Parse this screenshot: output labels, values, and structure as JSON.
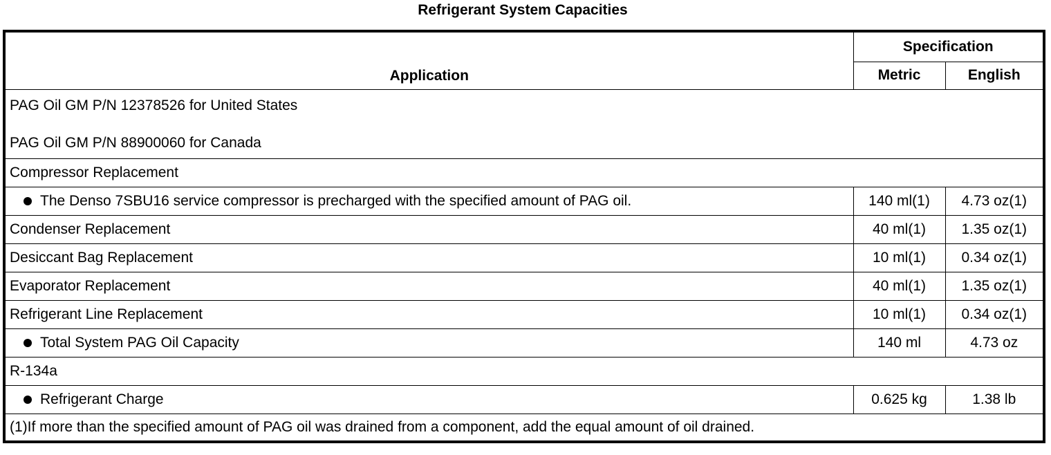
{
  "title": "Refrigerant System Capacities",
  "header": {
    "application": "Application",
    "specification": "Specification",
    "metric": "Metric",
    "english": "English"
  },
  "pag_us": "PAG Oil GM P/N 12378526 for United States",
  "pag_ca": "PAG Oil GM P/N 88900060 for Canada",
  "rows": [
    {
      "label": "Compressor Replacement",
      "bullet": false,
      "metric": "",
      "english": "",
      "span": true
    },
    {
      "label": "The Denso 7SBU16 service compressor is precharged with the specified amount of PAG oil.",
      "bullet": true,
      "metric": "140 ml(1)",
      "english": "4.73 oz(1)"
    },
    {
      "label": "Condenser Replacement",
      "bullet": false,
      "metric": "40 ml(1)",
      "english": "1.35 oz(1)"
    },
    {
      "label": "Desiccant Bag Replacement",
      "bullet": false,
      "metric": "10 ml(1)",
      "english": "0.34 oz(1)"
    },
    {
      "label": "Evaporator Replacement",
      "bullet": false,
      "metric": "40 ml(1)",
      "english": "1.35 oz(1)"
    },
    {
      "label": "Refrigerant Line Replacement",
      "bullet": false,
      "metric": "10 ml(1)",
      "english": "0.34 oz(1)"
    },
    {
      "label": "Total System PAG Oil Capacity",
      "bullet": true,
      "metric": "140 ml",
      "english": "4.73 oz"
    },
    {
      "label": "R-134a",
      "bullet": false,
      "metric": "",
      "english": "",
      "span": true
    },
    {
      "label": "Refrigerant Charge",
      "bullet": true,
      "metric": "0.625 kg",
      "english": "1.38 lb"
    }
  ],
  "footnote": "(1)If more than the specified amount of PAG oil was drained from a component, add the equal amount of oil drained."
}
